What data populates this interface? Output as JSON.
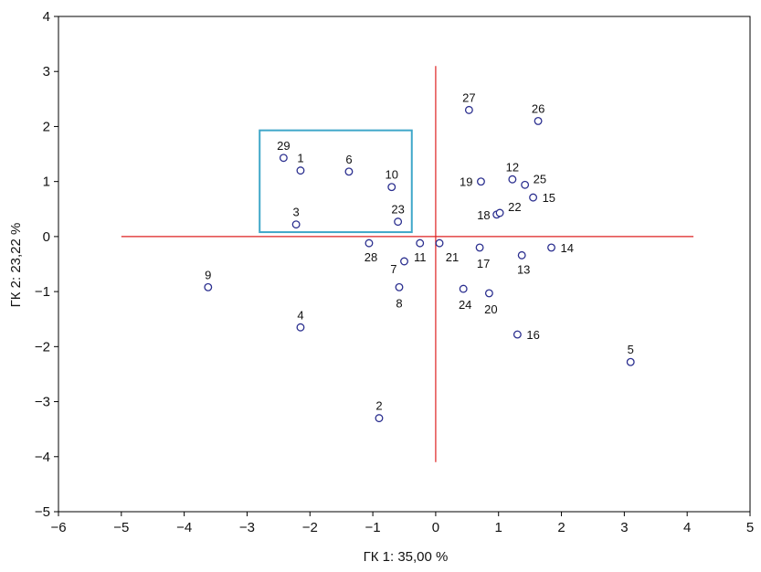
{
  "chart_data": {
    "type": "scatter",
    "title": "",
    "xlabel": "ГК 1: 35,00 %",
    "ylabel": "ГК 2: 23,22 %",
    "xlim": [
      -6,
      5
    ],
    "ylim": [
      -5,
      4
    ],
    "xticks": [
      "−6",
      "−5",
      "−4",
      "−3",
      "−2",
      "−1",
      "0",
      "1",
      "2",
      "3",
      "4",
      "5"
    ],
    "yticks": [
      "4",
      "3",
      "2",
      "1",
      "0",
      "−1",
      "−2",
      "−3",
      "−4",
      "−5"
    ],
    "grid": false,
    "points": [
      {
        "label": "1",
        "x": -2.15,
        "y": 1.2
      },
      {
        "label": "2",
        "x": -0.9,
        "y": -3.3
      },
      {
        "label": "3",
        "x": -2.22,
        "y": 0.22
      },
      {
        "label": "4",
        "x": -2.15,
        "y": -1.65
      },
      {
        "label": "5",
        "x": 3.1,
        "y": -2.28
      },
      {
        "label": "6",
        "x": -1.38,
        "y": 1.18
      },
      {
        "label": "7",
        "x": -0.5,
        "y": -0.45
      },
      {
        "label": "8",
        "x": -0.58,
        "y": -0.92
      },
      {
        "label": "9",
        "x": -3.62,
        "y": -0.92
      },
      {
        "label": "10",
        "x": -0.7,
        "y": 0.9
      },
      {
        "label": "11",
        "x": -0.25,
        "y": -0.12
      },
      {
        "label": "12",
        "x": 1.22,
        "y": 1.04
      },
      {
        "label": "13",
        "x": 1.37,
        "y": -0.34
      },
      {
        "label": "14",
        "x": 1.84,
        "y": -0.2
      },
      {
        "label": "15",
        "x": 1.55,
        "y": 0.71
      },
      {
        "label": "16",
        "x": 1.3,
        "y": -1.78
      },
      {
        "label": "17",
        "x": 0.7,
        "y": -0.2
      },
      {
        "label": "18",
        "x": 0.97,
        "y": 0.4
      },
      {
        "label": "19",
        "x": 0.72,
        "y": 1.0
      },
      {
        "label": "20",
        "x": 0.85,
        "y": -1.03
      },
      {
        "label": "21",
        "x": 0.06,
        "y": -0.12
      },
      {
        "label": "22",
        "x": 1.02,
        "y": 0.43
      },
      {
        "label": "23",
        "x": -0.6,
        "y": 0.27
      },
      {
        "label": "24",
        "x": 0.44,
        "y": -0.95
      },
      {
        "label": "25",
        "x": 1.42,
        "y": 0.94
      },
      {
        "label": "26",
        "x": 1.63,
        "y": 2.1
      },
      {
        "label": "27",
        "x": 0.53,
        "y": 2.3
      },
      {
        "label": "28",
        "x": -1.06,
        "y": -0.12
      },
      {
        "label": "29",
        "x": -2.42,
        "y": 1.43
      }
    ],
    "reference_lines": {
      "color": "#dd2222",
      "horizontal": {
        "y": 0,
        "x_from": -5.0,
        "x_to": 4.1
      },
      "vertical": {
        "x": 0,
        "y_from": -4.1,
        "y_to": 3.1
      }
    },
    "highlight_box": {
      "color": "#3fa7c9",
      "x_from": -2.8,
      "x_to": -0.38,
      "y_from": 0.08,
      "y_to": 1.93
    },
    "marker_color": "#2b2f8f",
    "axis_color": "#000000"
  }
}
